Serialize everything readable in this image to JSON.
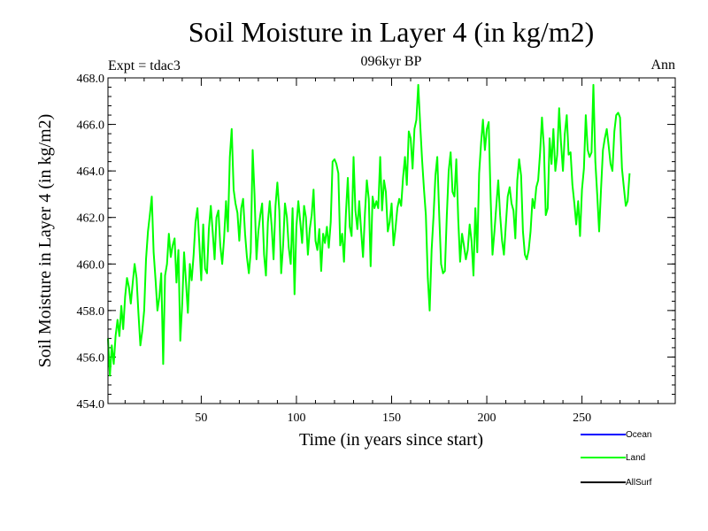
{
  "chart_data": {
    "type": "line",
    "title": "Soil Moisture in Layer 4 (in kg/m2)",
    "subtitle": "096kyr BP",
    "left_label": "Expt = tdac3",
    "right_label": "Ann",
    "xlabel": "Time (in years since start)",
    "ylabel": "Soil Moisture in Layer 4 (in kg/m2)",
    "xlim": [
      1,
      299
    ],
    "ylim": [
      454,
      468
    ],
    "xticks": [
      50,
      100,
      150,
      200,
      250
    ],
    "yticks": [
      454,
      456,
      458,
      460,
      462,
      464,
      466,
      468
    ],
    "ytick_labels": [
      "454.0",
      "456.0",
      "458.0",
      "460.0",
      "462.0",
      "464.0",
      "466.0",
      "468.0"
    ],
    "legend": [
      {
        "name": "Ocean",
        "color": "#0000ff"
      },
      {
        "name": "Land",
        "color": "#00ff00"
      },
      {
        "name": "AllSurf",
        "color": "#000000"
      }
    ],
    "series": [
      {
        "name": "Land",
        "color": "#00ff00",
        "x_start": 1,
        "x_step": 1,
        "values": [
          456.8,
          455.2,
          456.5,
          455.7,
          456.9,
          457.6,
          456.9,
          458.2,
          457.2,
          458.6,
          459.4,
          459.0,
          458.3,
          459.2,
          460.0,
          459.4,
          457.9,
          456.5,
          457.1,
          458.0,
          460.2,
          461.4,
          462.1,
          462.9,
          460.5,
          459.3,
          458.0,
          458.6,
          459.6,
          455.7,
          459.5,
          460.0,
          461.3,
          460.3,
          460.8,
          461.1,
          459.2,
          460.6,
          456.7,
          458.3,
          460.5,
          459.2,
          457.9,
          460.0,
          459.3,
          460.4,
          461.8,
          462.4,
          460.9,
          459.3,
          461.7,
          459.8,
          459.6,
          461.5,
          462.5,
          461.4,
          460.2,
          462.0,
          462.3,
          460.8,
          460.0,
          461.1,
          462.7,
          461.4,
          464.6,
          465.8,
          463.2,
          462.6,
          462.2,
          461.0,
          462.4,
          462.8,
          461.3,
          460.3,
          459.6,
          460.5,
          464.9,
          463.0,
          460.2,
          461.4,
          462.1,
          462.6,
          460.4,
          459.5,
          461.8,
          462.7,
          461.6,
          460.2,
          462.5,
          463.5,
          462.3,
          459.6,
          460.8,
          462.6,
          462.0,
          460.7,
          460.0,
          462.4,
          458.7,
          461.6,
          462.7,
          461.8,
          460.9,
          462.5,
          462.0,
          460.4,
          461.5,
          462.1,
          463.2,
          461.0,
          460.6,
          461.5,
          459.7,
          461.3,
          460.9,
          461.6,
          460.7,
          461.8,
          464.4,
          464.5,
          464.3,
          463.9,
          460.8,
          461.3,
          460.1,
          462.2,
          463.7,
          461.6,
          461.2,
          464.6,
          462.3,
          461.5,
          462.7,
          461.4,
          460.3,
          462.2,
          463.6,
          462.8,
          459.9,
          462.9,
          462.4,
          462.7,
          462.4,
          464.6,
          462.3,
          463.6,
          463.1,
          461.4,
          461.8,
          462.6,
          460.8,
          461.5,
          462.4,
          462.8,
          462.5,
          463.7,
          464.6,
          463.4,
          465.7,
          465.4,
          464.1,
          465.8,
          466.2,
          467.7,
          466.0,
          464.5,
          463.2,
          462.1,
          459.4,
          458.0,
          460.6,
          462.0,
          463.8,
          464.6,
          462.1,
          460.0,
          459.6,
          459.7,
          462.1,
          464.0,
          464.8,
          463.1,
          462.9,
          464.5,
          461.9,
          460.1,
          461.3,
          460.8,
          460.2,
          460.6,
          461.7,
          461.0,
          459.5,
          462.4,
          460.5,
          463.9,
          465.2,
          466.2,
          464.9,
          465.8,
          466.1,
          462.8,
          460.4,
          461.4,
          462.5,
          463.6,
          462.1,
          461.0,
          460.4,
          461.7,
          462.9,
          463.3,
          462.6,
          462.3,
          461.1,
          463.6,
          464.5,
          463.8,
          461.4,
          460.4,
          460.2,
          460.6,
          461.4,
          462.8,
          462.4,
          463.3,
          463.6,
          464.8,
          466.3,
          465.0,
          462.1,
          462.4,
          465.4,
          464.3,
          465.8,
          464.0,
          464.7,
          466.7,
          465.2,
          464.0,
          465.6,
          466.4,
          464.7,
          464.8,
          463.4,
          462.6,
          461.7,
          462.7,
          461.2,
          463.2,
          464.1,
          466.4,
          464.9,
          464.6,
          464.8,
          467.7,
          464.4,
          463.0,
          461.4,
          463.2,
          464.9,
          465.4,
          465.8,
          465.1,
          464.3,
          464.0,
          465.7,
          466.4,
          466.5,
          466.3,
          464.1,
          463.3,
          462.5,
          462.7,
          463.9
        ]
      }
    ]
  }
}
